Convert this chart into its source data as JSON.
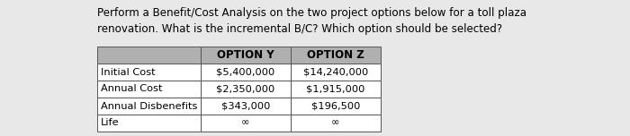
{
  "title_line1": "Perform a Benefit/Cost Analysis on the two project options below for a toll plaza",
  "title_line2": "renovation. What is the incremental B/C? Which option should be selected?",
  "headers": [
    "",
    "OPTION Y",
    "OPTION Z"
  ],
  "rows": [
    [
      "Initial Cost",
      "$5,400,000",
      "$14,240,000"
    ],
    [
      "Annual Cost",
      "$2,350,000",
      "$1,915,000"
    ],
    [
      "Annual Disbenefits",
      "$343,000",
      "$196,500"
    ],
    [
      "Life",
      "∞",
      "∞"
    ]
  ],
  "header_bg": "#b0b0b0",
  "header_text_color": "#000000",
  "row_bg": "#ffffff",
  "row_label_bg": "#ffffff",
  "border_color": "#555555",
  "text_color": "#000000",
  "title_color": "#000000",
  "title_fontsize": 8.6,
  "table_fontsize": 8.2,
  "header_fontsize": 8.5,
  "fig_bg": "#e8e8e8",
  "table_bg": "#d8d8d8"
}
